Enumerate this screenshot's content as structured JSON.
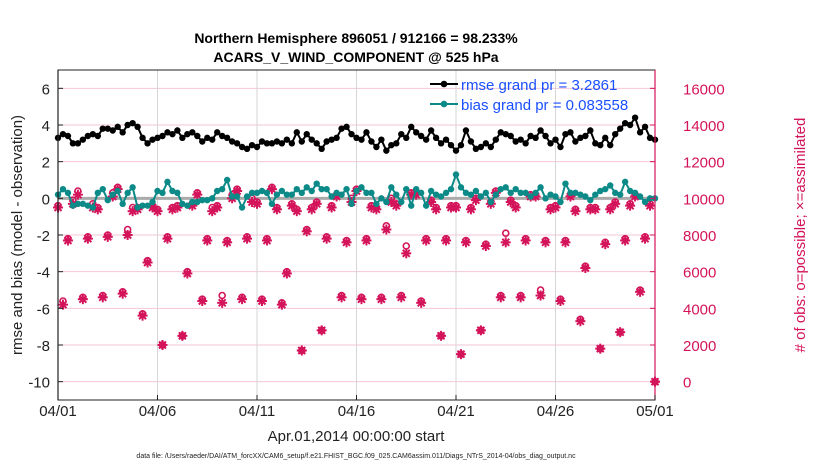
{
  "chart_data": {
    "type": "line",
    "title_line1": "Northern Hemisphere 896051 / 912166 = 98.233%",
    "title_line2": "ACARS_V_WIND_COMPONENT @ 525 hPa",
    "xlabel": "Apr.01,2014 00:00:00 start",
    "ylabel": "rmse and bias (model - observation)",
    "ylabel_right": "# of obs: o=possible; ×=assimilated",
    "footnote": "data file: /Users/raeder/DAI/ATM_forcXX/CAM6_setup/f.e21.FHIST_BGC.f09_025.CAM6assim.011/Diags_NTrS_2014-04/obs_diag_output.nc",
    "xlim_days": [
      0,
      30
    ],
    "ylim": [
      -11,
      7
    ],
    "ylim_right": [
      -1000,
      17000
    ],
    "x_step_days": 0.25,
    "x_ticks": [
      {
        "day": 0,
        "label": "04/01"
      },
      {
        "day": 5,
        "label": "04/06"
      },
      {
        "day": 10,
        "label": "04/11"
      },
      {
        "day": 15,
        "label": "04/16"
      },
      {
        "day": 20,
        "label": "04/21"
      },
      {
        "day": 25,
        "label": "04/26"
      },
      {
        "day": 30,
        "label": "05/01"
      }
    ],
    "y_ticks": [
      "6",
      "4",
      "2",
      "0",
      "-2",
      "-4",
      "-6",
      "-8",
      "-10"
    ],
    "y_ticks_right": [
      "16000",
      "14000",
      "12000",
      "10000",
      "8000",
      "6000",
      "4000",
      "2000",
      "0"
    ],
    "legend": {
      "placement": "top-right",
      "rmse": "rmse grand pr = 3.2861",
      "bias": "bias grand pr = 0.083558"
    },
    "colors": {
      "rmse": "#000000",
      "bias": "#0b8a88",
      "obs": "#d4145a",
      "legend_text": "#1a4fff",
      "grid_h": "#f5c6d6",
      "grid_v": "#d6d6d6"
    },
    "series": [
      {
        "name": "rmse",
        "values": [
          3.3,
          3.5,
          3.4,
          3.0,
          3.0,
          3.2,
          3.4,
          3.5,
          3.4,
          3.8,
          3.8,
          3.7,
          3.9,
          3.6,
          4.0,
          4.1,
          3.9,
          3.3,
          3.0,
          3.2,
          3.3,
          3.4,
          3.6,
          3.5,
          3.7,
          3.3,
          3.5,
          3.6,
          3.4,
          3.1,
          3.3,
          3.2,
          3.6,
          3.4,
          3.3,
          3.1,
          3.0,
          2.8,
          2.7,
          2.9,
          2.8,
          3.1,
          3.0,
          3.0,
          3.1,
          3.0,
          3.2,
          3.0,
          3.6,
          3.1,
          3.5,
          3.2,
          3.0,
          2.7,
          3.1,
          3.2,
          3.3,
          3.8,
          3.9,
          3.5,
          3.3,
          3.2,
          3.6,
          3.1,
          2.8,
          3.2,
          2.6,
          2.9,
          3.0,
          3.5,
          3.3,
          3.9,
          3.6,
          3.4,
          3.2,
          3.7,
          3.3,
          3.0,
          3.2,
          2.9,
          2.6,
          2.9,
          3.7,
          3.1,
          2.7,
          2.8,
          3.0,
          2.8,
          3.2,
          3.6,
          3.5,
          3.4,
          3.1,
          3.2,
          3.0,
          3.4,
          3.3,
          3.7,
          3.4,
          3.0,
          3.2,
          2.8,
          3.5,
          3.6,
          3.1,
          3.3,
          3.4,
          3.7,
          3.0,
          2.9,
          3.3,
          2.9,
          3.5,
          3.8,
          4.1,
          4.0,
          4.4,
          3.6,
          3.9,
          3.3,
          3.2
        ]
      },
      {
        "name": "bias",
        "values": [
          0.2,
          0.5,
          0.3,
          -0.4,
          -0.3,
          -0.3,
          -0.4,
          -0.5,
          0.3,
          0.5,
          -0.1,
          0.2,
          0.4,
          -0.3,
          0.3,
          0.6,
          -0.5,
          -0.4,
          -0.4,
          -0.2,
          0.4,
          0.3,
          0.9,
          0.4,
          0.3,
          -0.3,
          -0.4,
          -0.2,
          -0.2,
          -0.1,
          -0.1,
          0.0,
          0.4,
          0.5,
          1.0,
          0.1,
          0.1,
          -0.5,
          0.1,
          0.3,
          0.3,
          0.4,
          0.3,
          -0.3,
          0.2,
          0.4,
          0.2,
          0.2,
          0.5,
          0.3,
          0.6,
          0.4,
          0.8,
          0.5,
          0.5,
          0.1,
          0.3,
          0.2,
          0.5,
          -0.3,
          0.4,
          0.6,
          0.3,
          0.3,
          -0.3,
          0.0,
          -0.2,
          0.6,
          0.2,
          -0.2,
          0.5,
          -0.4,
          0.5,
          0.3,
          -0.4,
          0.4,
          0.2,
          0.1,
          0.3,
          0.5,
          1.3,
          0.6,
          0.3,
          0.2,
          0.4,
          0.1,
          0.3,
          -0.2,
          0.2,
          0.5,
          0.6,
          0.3,
          0.5,
          0.3,
          0.3,
          0.1,
          0.3,
          0.6,
          0.0,
          0.2,
          0.1,
          -0.2,
          0.8,
          0.3,
          0.3,
          0.2,
          0.1,
          -0.1,
          0.2,
          0.4,
          0.5,
          0.7,
          0.3,
          0.2,
          0.9,
          0.4,
          0.3,
          0.1,
          -0.2,
          0.0,
          0.0
        ]
      },
      {
        "name": "obs_possible",
        "values": [
          9600,
          4400,
          7800,
          9900,
          10400,
          4600,
          7900,
          9700,
          9500,
          4700,
          8000,
          10300,
          10600,
          4900,
          8300,
          9500,
          9500,
          3700,
          6600,
          9600,
          9400,
          2000,
          7900,
          9500,
          9600,
          2500,
          6000,
          9700,
          10300,
          4500,
          7800,
          9500,
          9600,
          4700,
          7700,
          10200,
          10500,
          4600,
          7900,
          10000,
          9800,
          4500,
          7800,
          10600,
          9500,
          4300,
          6000,
          9700,
          9400,
          1700,
          8300,
          9500,
          9800,
          2800,
          7900,
          9600,
          10200,
          4700,
          7700,
          10000,
          10500,
          4600,
          7800,
          9600,
          9500,
          4600,
          8500,
          10000,
          9700,
          4700,
          7400,
          10300,
          10300,
          4400,
          7800,
          9900,
          9500,
          2500,
          7800,
          9600,
          9600,
          1500,
          7700,
          9500,
          10000,
          2800,
          7500,
          9800,
          10400,
          4700,
          8100,
          9900,
          9600,
          4700,
          7800,
          10200,
          10200,
          5000,
          7700,
          9500,
          9600,
          4500,
          7700,
          10200,
          9400,
          3400,
          6300,
          9500,
          9500,
          1800,
          7600,
          9500,
          9800,
          2700,
          7800,
          9700,
          10200,
          5000,
          7900,
          9700,
          0
        ]
      },
      {
        "name": "obs_assimilated",
        "values": [
          9500,
          4200,
          7700,
          9700,
          10200,
          4500,
          7800,
          9500,
          9400,
          4600,
          7900,
          10100,
          10500,
          4800,
          8000,
          9300,
          9400,
          3600,
          6500,
          9500,
          9300,
          2000,
          7800,
          9400,
          9500,
          2500,
          5900,
          9600,
          10200,
          4400,
          7700,
          9300,
          9500,
          4300,
          7600,
          10000,
          10400,
          4500,
          7800,
          9800,
          9700,
          4400,
          7700,
          10500,
          9400,
          4200,
          5900,
          9600,
          9300,
          1700,
          8200,
          9400,
          9700,
          2800,
          7800,
          9500,
          10100,
          4600,
          7600,
          9800,
          10400,
          4500,
          7700,
          9500,
          9400,
          4500,
          8300,
          9800,
          9600,
          4600,
          7000,
          10200,
          10200,
          4300,
          7700,
          9800,
          9400,
          2500,
          7700,
          9500,
          9500,
          1500,
          7600,
          9400,
          9900,
          2800,
          7400,
          9700,
          10300,
          4600,
          7600,
          9800,
          9500,
          4600,
          7700,
          10100,
          10100,
          4700,
          7600,
          9400,
          9500,
          4400,
          7600,
          10100,
          9300,
          3300,
          6200,
          9400,
          9400,
          1800,
          7500,
          9400,
          9700,
          2700,
          7700,
          9600,
          10100,
          4900,
          7800,
          9600,
          0
        ]
      }
    ]
  }
}
